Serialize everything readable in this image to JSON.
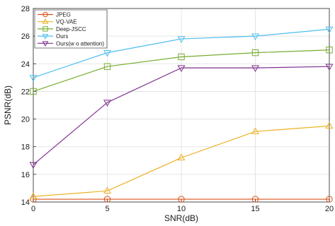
{
  "chart_data": {
    "type": "line",
    "title": "",
    "xlabel": "SNR(dB)",
    "ylabel": "PSNR(dB)",
    "x": [
      0,
      5,
      10,
      15,
      20
    ],
    "xlim": [
      0,
      20
    ],
    "ylim": [
      14,
      28
    ],
    "xticks": [
      0,
      5,
      10,
      15,
      20
    ],
    "yticks": [
      14,
      16,
      18,
      20,
      22,
      24,
      26,
      28
    ],
    "grid": true,
    "legend_position": "top-left",
    "series": [
      {
        "name": "JPEG",
        "values": [
          14.2,
          14.2,
          14.2,
          14.2,
          14.2
        ],
        "color": "#D95319",
        "marker": "circle"
      },
      {
        "name": "VQ-VAE",
        "values": [
          14.4,
          14.8,
          17.2,
          19.1,
          19.5
        ],
        "color": "#EDB120",
        "marker": "triangle-up"
      },
      {
        "name": "Deep-JSCC",
        "values": [
          22.0,
          23.8,
          24.5,
          24.8,
          25.0
        ],
        "color": "#77AC30",
        "marker": "square"
      },
      {
        "name": "Ours",
        "values": [
          23.0,
          24.8,
          25.8,
          26.0,
          26.5
        ],
        "color": "#4DBEEE",
        "marker": "triangle-down"
      },
      {
        "name": "Ours(w o attention)",
        "values": [
          16.7,
          21.2,
          23.7,
          23.7,
          23.8
        ],
        "color": "#7E2F8E",
        "marker": "triangle-down"
      }
    ]
  }
}
